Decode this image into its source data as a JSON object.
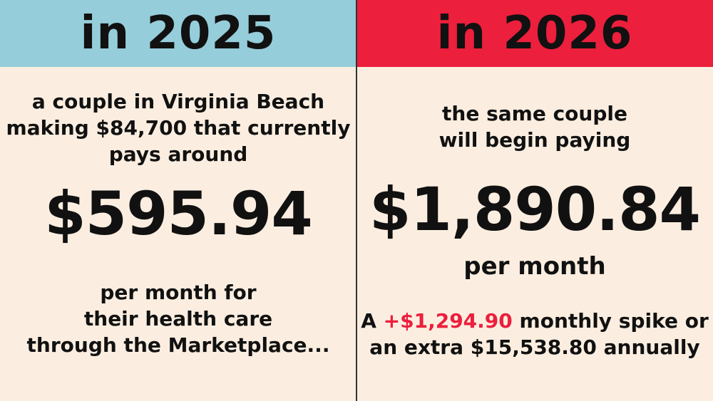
{
  "colors": {
    "background": "#fbeee0",
    "header_left": "#96cddb",
    "header_right": "#ec1f3d",
    "highlight": "#ec1f3d",
    "text": "#111111"
  },
  "left": {
    "header": "in 2025",
    "intro_lines": [
      "a couple in Virginia Beach",
      "making $84,700 that currently",
      "pays around"
    ],
    "amount": "$595.94",
    "outro_lines": [
      "per month for",
      "their health care",
      "through the Marketplace..."
    ]
  },
  "right": {
    "header": "in 2026",
    "intro_lines": [
      "the same couple",
      "will begin paying"
    ],
    "amount": "$1,890.84",
    "unit": "per month",
    "summary": {
      "line1_prefix": "A ",
      "line1_highlight": "+$1,294.90",
      "line1_suffix": " monthly spike or",
      "line2": "an extra $15,538.80 annually"
    }
  }
}
